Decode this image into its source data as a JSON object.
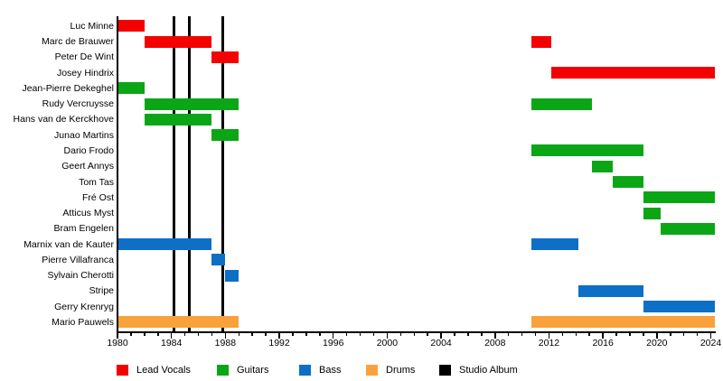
{
  "page": {
    "background_color": "#ffffff",
    "text_color": "#000000"
  },
  "chart_data": {
    "type": "bar",
    "variant": "band-member-timeline-gantt",
    "title": "",
    "xlabel": "",
    "ylabel": "",
    "x_axis": {
      "min": 1980,
      "max": 2024.3,
      "major_tick_step": 4,
      "minor_tick_step": 1,
      "major_tick_labels": [
        "1980",
        "1984",
        "1988",
        "1992",
        "1996",
        "2000",
        "2004",
        "2008",
        "2012",
        "2016",
        "2020",
        "2024"
      ]
    },
    "roles": {
      "lead_vocals": {
        "label": "Lead Vocals",
        "color": "#f40000"
      },
      "guitars": {
        "label": "Guitars",
        "color": "#0ba616"
      },
      "bass": {
        "label": "Bass",
        "color": "#0d6fc6"
      },
      "drums": {
        "label": "Drums",
        "color": "#f9a23c"
      },
      "studio_album": {
        "label": "Studio Album",
        "color": "#000000"
      }
    },
    "members": [
      {
        "name": "Luc Minne",
        "role": "lead_vocals",
        "periods": [
          [
            1980,
            1982
          ]
        ]
      },
      {
        "name": "Marc de Brauwer",
        "role": "lead_vocals",
        "periods": [
          [
            1982,
            1987
          ],
          [
            2010.7,
            2012.2
          ]
        ]
      },
      {
        "name": "Peter De Wint",
        "role": "lead_vocals",
        "periods": [
          [
            1987,
            1989
          ]
        ]
      },
      {
        "name": "Josey Hindrix",
        "role": "lead_vocals",
        "periods": [
          [
            2012.2,
            2024.3
          ]
        ]
      },
      {
        "name": "Jean-Pierre Dekeghel",
        "role": "guitars",
        "periods": [
          [
            1980,
            1982
          ]
        ]
      },
      {
        "name": "Rudy Vercruysse",
        "role": "guitars",
        "periods": [
          [
            1982,
            1989
          ],
          [
            2010.7,
            2015.2
          ]
        ]
      },
      {
        "name": "Hans van de Kerckhove",
        "role": "guitars",
        "periods": [
          [
            1982,
            1987
          ]
        ]
      },
      {
        "name": "Junao Martins",
        "role": "guitars",
        "periods": [
          [
            1987,
            1989
          ]
        ]
      },
      {
        "name": "Dario Frodo",
        "role": "guitars",
        "periods": [
          [
            2010.7,
            2019
          ]
        ]
      },
      {
        "name": "Geert Annys",
        "role": "guitars",
        "periods": [
          [
            2015.2,
            2016.7
          ]
        ]
      },
      {
        "name": "Tom Tas",
        "role": "guitars",
        "periods": [
          [
            2016.7,
            2019
          ]
        ]
      },
      {
        "name": "Fré Ost",
        "role": "guitars",
        "periods": [
          [
            2019,
            2024.3
          ]
        ]
      },
      {
        "name": "Atticus Myst",
        "role": "guitars",
        "periods": [
          [
            2019,
            2020.3
          ]
        ]
      },
      {
        "name": "Bram Engelen",
        "role": "guitars",
        "periods": [
          [
            2020.3,
            2024.3
          ]
        ]
      },
      {
        "name": "Marnix van de Kauter",
        "role": "bass",
        "periods": [
          [
            1980,
            1987
          ],
          [
            2010.7,
            2014.2
          ]
        ]
      },
      {
        "name": "Pierre Villafranca",
        "role": "bass",
        "periods": [
          [
            1987,
            1988
          ]
        ]
      },
      {
        "name": "Sylvain Cherotti",
        "role": "bass",
        "periods": [
          [
            1988,
            1989
          ]
        ]
      },
      {
        "name": "Stripe",
        "role": "bass",
        "periods": [
          [
            2014.2,
            2019
          ]
        ]
      },
      {
        "name": "Gerry Krenryg",
        "role": "bass",
        "periods": [
          [
            2019,
            2024.3
          ]
        ]
      },
      {
        "name": "Mario Pauwels",
        "role": "drums",
        "periods": [
          [
            1980,
            1989
          ],
          [
            2010.7,
            2024.3
          ]
        ]
      }
    ],
    "studio_albums": [
      1984.2,
      1985.3,
      1987.8
    ],
    "legend": [
      {
        "label": "Lead Vocals",
        "color": "#f40000"
      },
      {
        "label": "Guitars",
        "color": "#0ba616"
      },
      {
        "label": "Bass",
        "color": "#0d6fc6"
      },
      {
        "label": "Drums",
        "color": "#f9a23c"
      },
      {
        "label": "Studio Album",
        "color": "#000000"
      }
    ],
    "legend_position": "bottom",
    "grid": false
  }
}
